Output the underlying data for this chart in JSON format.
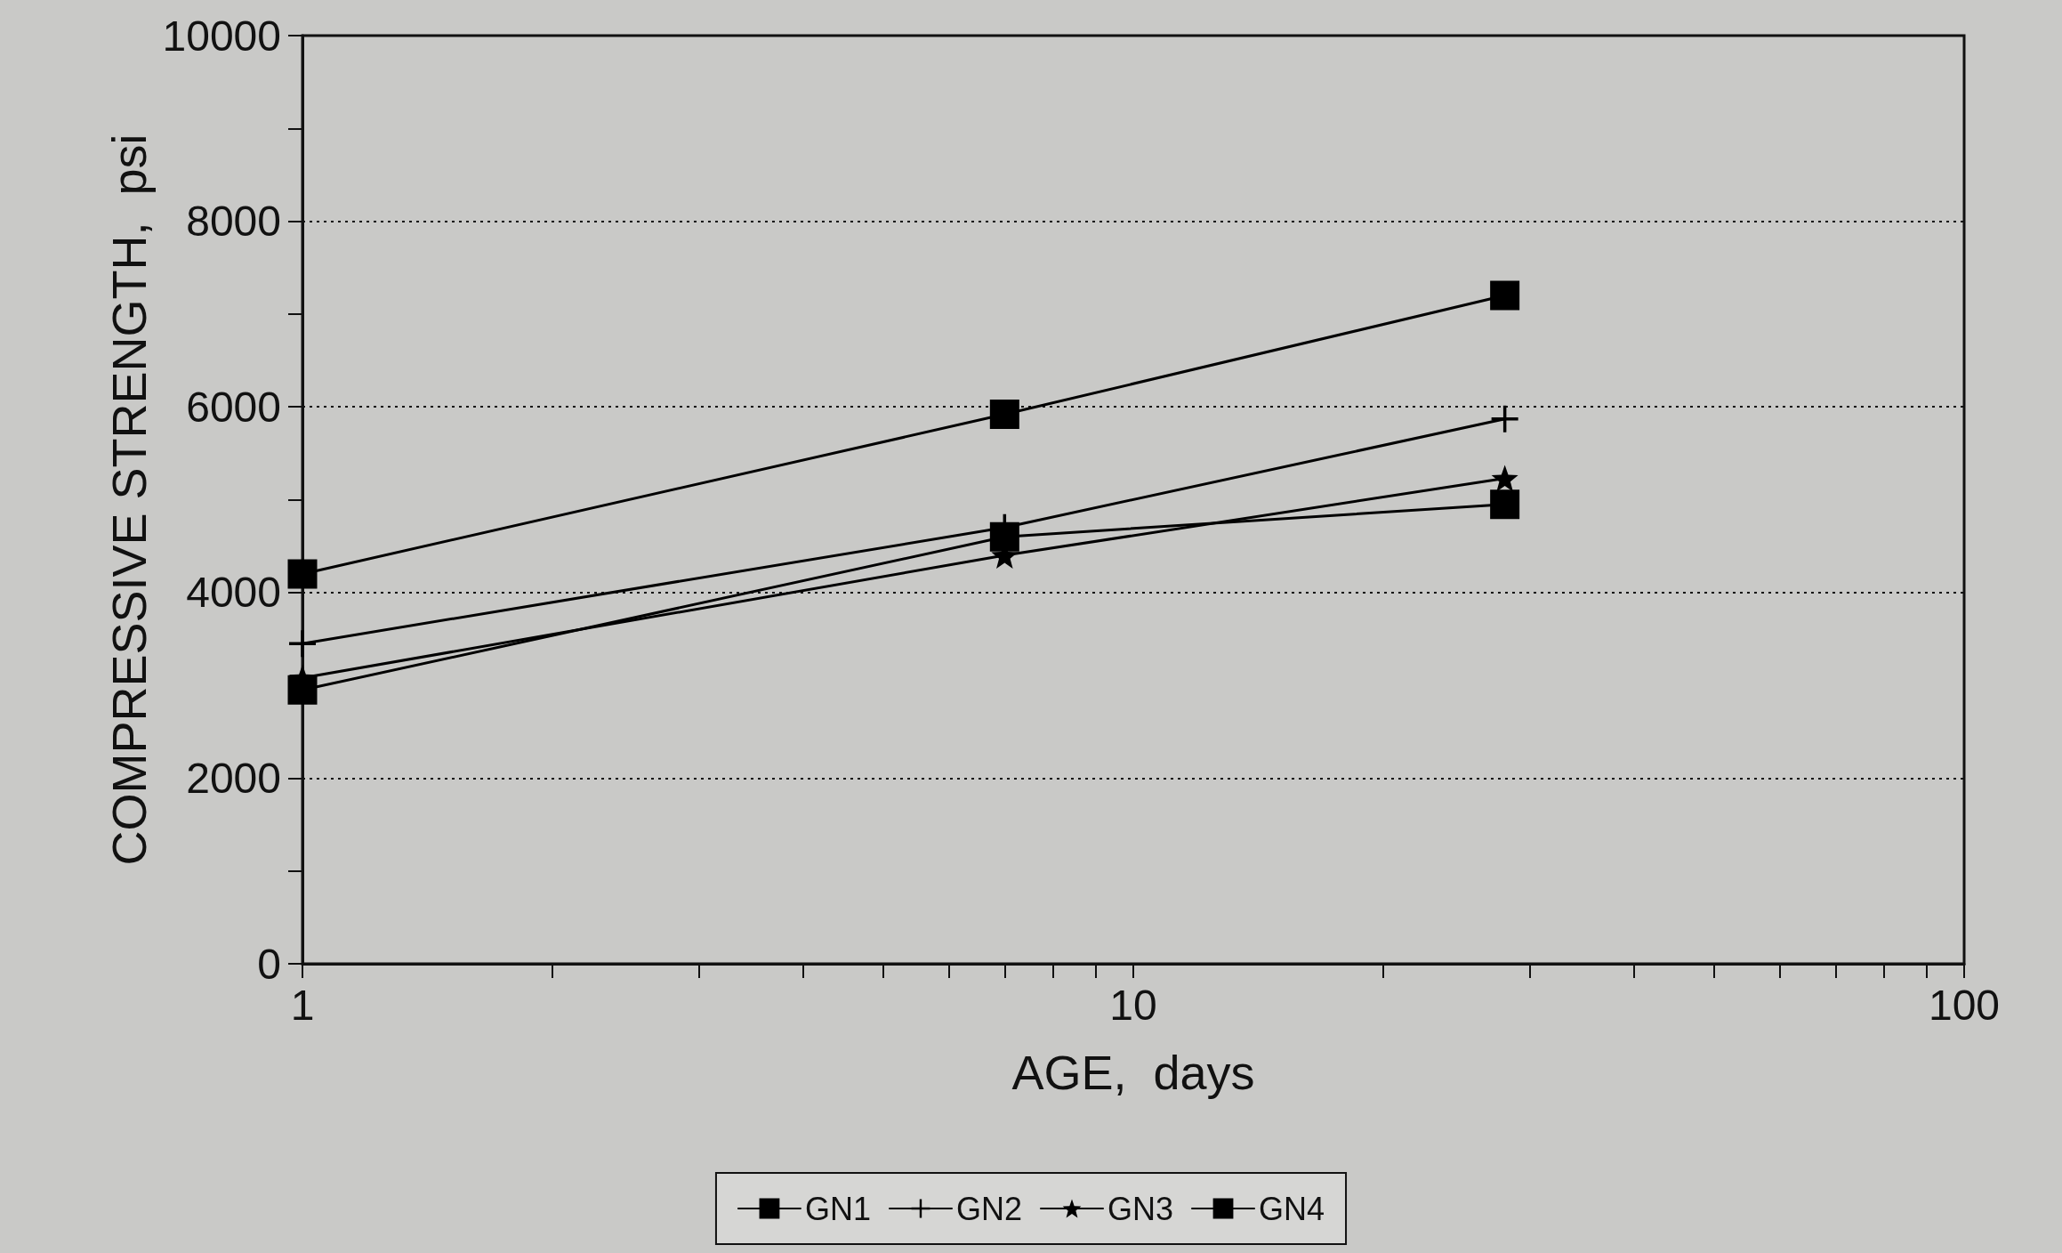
{
  "chart_data": {
    "type": "line",
    "xlabel": "AGE,  days",
    "ylabel": "COMPRESSIVE STRENGTH,  psi",
    "x": [
      1,
      7,
      28
    ],
    "series": [
      {
        "name": "GN1",
        "color": "#000000",
        "marker": "square",
        "values": [
          2950,
          4600,
          4950
        ]
      },
      {
        "name": "GN2",
        "color": "#000000",
        "marker": "cross",
        "values": [
          3450,
          4700,
          5870
        ]
      },
      {
        "name": "GN3",
        "color": "#000000",
        "marker": "star",
        "values": [
          3080,
          4400,
          5230
        ]
      },
      {
        "name": "GN4",
        "color": "#000000",
        "marker": "square",
        "values": [
          4200,
          5920,
          7200
        ]
      }
    ],
    "log": "x",
    "xlim": [
      1,
      100
    ],
    "xticks": [
      1,
      {
        "value": 2,
        "label": null
      },
      {
        "value": 3,
        "label": null
      },
      {
        "value": 4,
        "label": null
      },
      {
        "value": 5,
        "label": null
      },
      {
        "value": 6,
        "label": null
      },
      {
        "value": 7,
        "label": null
      },
      {
        "value": 8,
        "label": null
      },
      {
        "value": 9,
        "label": null
      },
      10,
      {
        "value": 20,
        "label": null
      },
      {
        "value": 30,
        "label": null
      },
      {
        "value": 40,
        "label": null
      },
      {
        "value": 50,
        "label": null
      },
      {
        "value": 60,
        "label": null
      },
      {
        "value": 70,
        "label": null
      },
      {
        "value": 80,
        "label": null
      },
      {
        "value": 90,
        "label": null
      },
      100
    ],
    "ylim": [
      0,
      10000
    ],
    "yticks": [
      0,
      2000,
      4000,
      6000,
      8000,
      10000
    ],
    "grid": "y",
    "legend": "bottom",
    "line_style": "solid"
  }
}
